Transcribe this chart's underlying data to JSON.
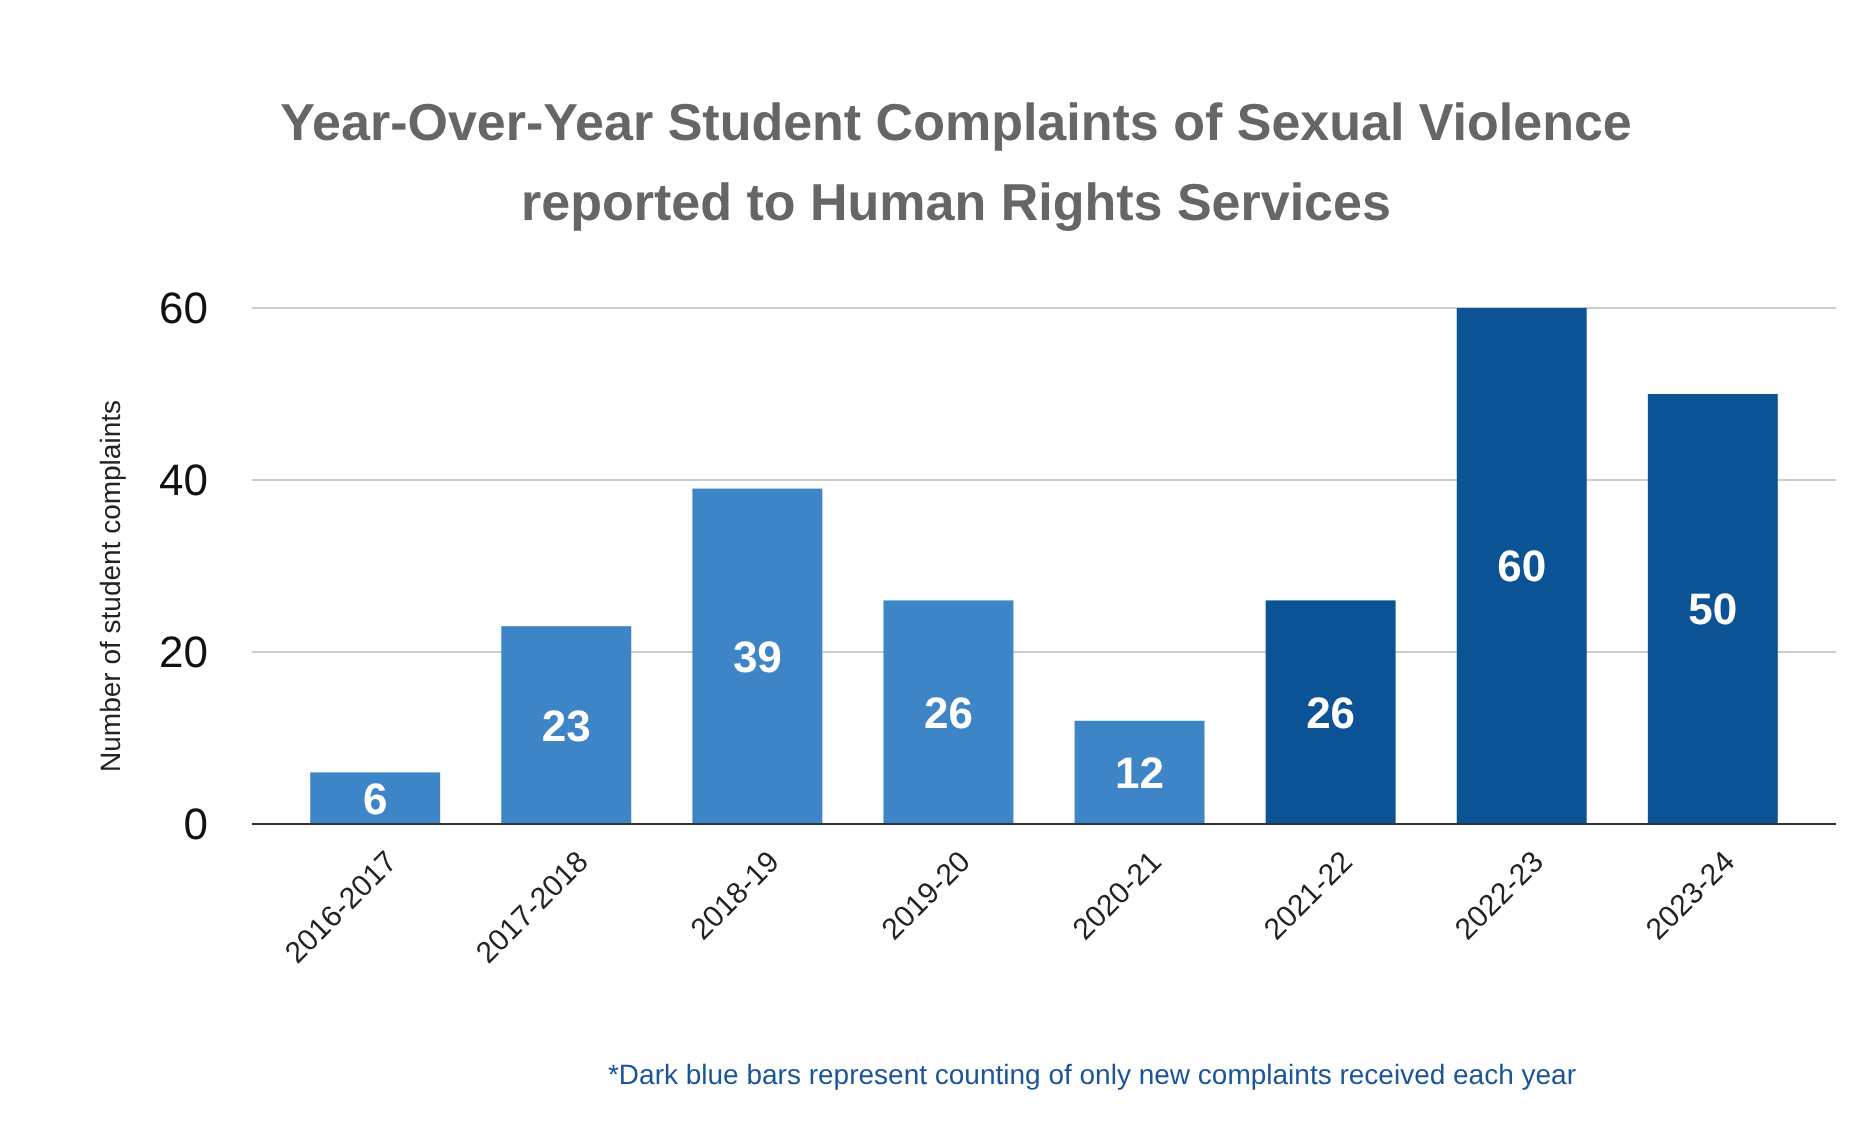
{
  "chart_data": {
    "type": "bar",
    "title": "Year-Over-Year Student Complaints of Sexual Violence reported to Human Rights Services",
    "ylabel": "Number of student complaints",
    "categories": [
      "2016-2017",
      "2017-2018",
      "2018-19",
      "2019-20",
      "2020-21",
      "2021-22",
      "2022-23",
      "2023-24"
    ],
    "values": [
      6,
      23,
      39,
      26,
      12,
      26,
      60,
      50
    ],
    "colors": [
      "#3d85c6",
      "#3d85c6",
      "#3d85c6",
      "#3d85c6",
      "#3d85c6",
      "#0b5394",
      "#0b5394",
      "#0b5394"
    ],
    "ylim": [
      0,
      60
    ],
    "yticks": [
      0,
      20,
      40,
      60
    ],
    "grid": "y",
    "data_labels": true,
    "annotations": [
      "*Dark blue bars represent counting of only new complaints received each year"
    ]
  }
}
